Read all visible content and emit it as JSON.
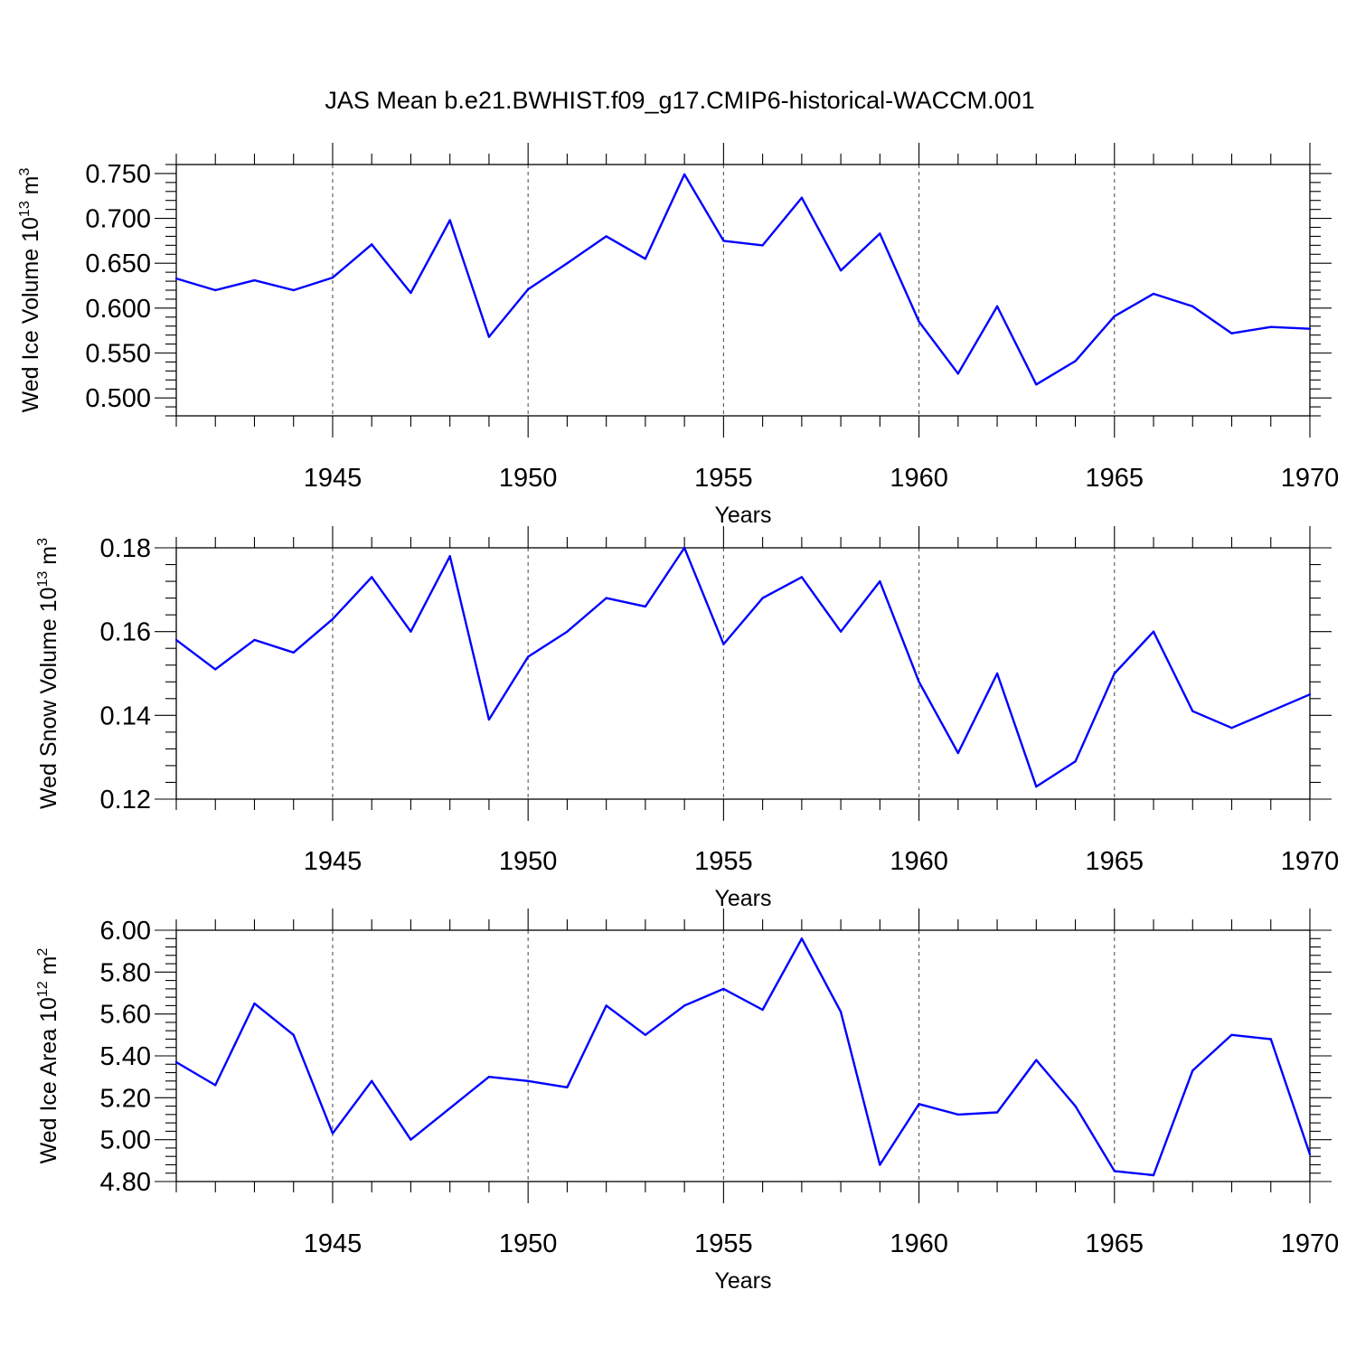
{
  "title": "JAS Mean b.e21.BWHIST.f09_g17.CMIP6-historical-WACCM.001",
  "colors": {
    "line": "#0000ff",
    "axis": "#000000",
    "grid": "#555555"
  },
  "chart_data": [
    {
      "type": "line",
      "title": "",
      "xlabel": "Years",
      "ylabel": "Wed Ice Volume 10",
      "ylabel_exp": "13",
      "ylabel_unit": " m",
      "ylabel_unit_exp": "3",
      "xlim": [
        1941,
        1970
      ],
      "ylim": [
        0.48,
        0.76
      ],
      "x_ticks": [
        1945,
        1950,
        1955,
        1960,
        1965,
        1970
      ],
      "x_tick_labels": [
        "1945",
        "1950",
        "1955",
        "1960",
        "1965",
        "1970"
      ],
      "y_ticks": [
        0.5,
        0.55,
        0.6,
        0.65,
        0.7,
        0.75
      ],
      "y_tick_labels": [
        "0.500",
        "0.550",
        "0.600",
        "0.650",
        "0.700",
        "0.750"
      ],
      "y_minor_step": 0.01,
      "x_minor_step": 1,
      "vertical_grid": [
        1945,
        1950,
        1955,
        1960,
        1965
      ],
      "series": [
        {
          "name": "Wed Ice Volume",
          "x": [
            1941,
            1942,
            1943,
            1944,
            1945,
            1946,
            1947,
            1948,
            1949,
            1950,
            1951,
            1952,
            1953,
            1954,
            1955,
            1956,
            1957,
            1958,
            1959,
            1960,
            1961,
            1962,
            1963,
            1964,
            1965,
            1966,
            1967,
            1968,
            1969,
            1970
          ],
          "values": [
            0.633,
            0.62,
            0.631,
            0.62,
            0.634,
            0.671,
            0.617,
            0.698,
            0.568,
            0.621,
            0.65,
            0.68,
            0.655,
            0.749,
            0.675,
            0.67,
            0.723,
            0.642,
            0.683,
            0.585,
            0.527,
            0.602,
            0.515,
            0.541,
            0.591,
            0.616,
            0.602,
            0.572,
            0.579,
            0.577
          ]
        }
      ]
    },
    {
      "type": "line",
      "title": "",
      "xlabel": "Years",
      "ylabel": "Wed Snow Volume 10",
      "ylabel_exp": "13",
      "ylabel_unit": " m",
      "ylabel_unit_exp": "3",
      "xlim": [
        1941,
        1970
      ],
      "ylim": [
        0.12,
        0.18
      ],
      "x_ticks": [
        1945,
        1950,
        1955,
        1960,
        1965,
        1970
      ],
      "x_tick_labels": [
        "1945",
        "1950",
        "1955",
        "1960",
        "1965",
        "1970"
      ],
      "y_ticks": [
        0.12,
        0.14,
        0.16,
        0.18
      ],
      "y_tick_labels": [
        "0.12",
        "0.14",
        "0.16",
        "0.18"
      ],
      "y_minor_step": 0.004,
      "x_minor_step": 1,
      "vertical_grid": [
        1945,
        1950,
        1955,
        1960,
        1965
      ],
      "series": [
        {
          "name": "Wed Snow Volume",
          "x": [
            1941,
            1942,
            1943,
            1944,
            1945,
            1946,
            1947,
            1948,
            1949,
            1950,
            1951,
            1952,
            1953,
            1954,
            1955,
            1956,
            1957,
            1958,
            1959,
            1960,
            1961,
            1962,
            1963,
            1964,
            1965,
            1966,
            1967,
            1968,
            1969,
            1970
          ],
          "values": [
            0.158,
            0.151,
            0.158,
            0.155,
            0.163,
            0.173,
            0.16,
            0.178,
            0.139,
            0.154,
            0.16,
            0.168,
            0.166,
            0.18,
            0.157,
            0.168,
            0.173,
            0.16,
            0.172,
            0.148,
            0.131,
            0.15,
            0.123,
            0.129,
            0.15,
            0.16,
            0.141,
            0.137,
            0.141,
            0.145
          ]
        }
      ]
    },
    {
      "type": "line",
      "title": "",
      "xlabel": "Years",
      "ylabel": "Wed Ice Area 10",
      "ylabel_exp": "12",
      "ylabel_unit": " m",
      "ylabel_unit_exp": "2",
      "xlim": [
        1941,
        1970
      ],
      "ylim": [
        4.8,
        6.0
      ],
      "x_ticks": [
        1945,
        1950,
        1955,
        1960,
        1965,
        1970
      ],
      "x_tick_labels": [
        "1945",
        "1950",
        "1955",
        "1960",
        "1965",
        "1970"
      ],
      "y_ticks": [
        4.8,
        5.0,
        5.2,
        5.4,
        5.6,
        5.8,
        6.0
      ],
      "y_tick_labels": [
        "4.80",
        "5.00",
        "5.20",
        "5.40",
        "5.60",
        "5.80",
        "6.00"
      ],
      "y_minor_step": 0.04,
      "x_minor_step": 1,
      "vertical_grid": [
        1945,
        1950,
        1955,
        1960,
        1965
      ],
      "series": [
        {
          "name": "Wed Ice Area",
          "x": [
            1941,
            1942,
            1943,
            1944,
            1945,
            1946,
            1947,
            1948,
            1949,
            1950,
            1951,
            1952,
            1953,
            1954,
            1955,
            1956,
            1957,
            1958,
            1959,
            1960,
            1961,
            1962,
            1963,
            1964,
            1965,
            1966,
            1967,
            1968,
            1969,
            1970
          ],
          "values": [
            5.37,
            5.26,
            5.65,
            5.5,
            5.03,
            5.28,
            5.0,
            5.15,
            5.3,
            5.28,
            5.25,
            5.64,
            5.5,
            5.64,
            5.72,
            5.62,
            5.96,
            5.61,
            4.88,
            5.17,
            5.12,
            5.13,
            5.38,
            5.16,
            4.85,
            4.83,
            5.33,
            5.5,
            5.48,
            4.93
          ]
        }
      ]
    }
  ]
}
